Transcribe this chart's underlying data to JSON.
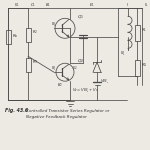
{
  "bg_color": "#ede9e3",
  "line_color": "#4a4a4a",
  "text_color": "#333333",
  "title": "Fig. 43.6",
  "caption1": "Controlled Transistor Series Regulator or",
  "caption2": "Negative Feedback Regulator",
  "figsize": [
    1.5,
    1.5
  ],
  "dpi": 100
}
